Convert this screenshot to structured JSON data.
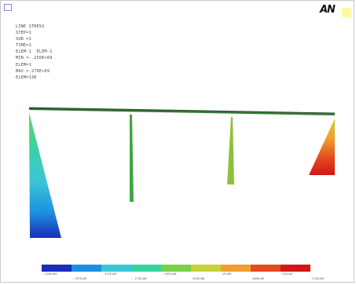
{
  "logo_text": "AN",
  "info_lines": [
    "LINE STRESS",
    "STEP=1",
    "SUB =1",
    "TIME=1",
    "ELEM-1  ELEM-1",
    "MIN =-.256E+09",
    "ELEM=1",
    "MAX =.276E+09",
    "ELEM=136"
  ],
  "legend": {
    "colors": [
      "#1a2db8",
      "#1d8fe0",
      "#3bc6d6",
      "#38d4a0",
      "#7bd04a",
      "#c8d03a",
      "#f0a030",
      "#e44a20",
      "#d01818"
    ],
    "labels_top": [
      "-.256E+09",
      "-.137E+09",
      "-.181E+08",
      ".1E+09",
      ".22E+09"
    ],
    "labels_bottom": [
      "-.197E+09",
      "-.774E+08",
      ".416E+08",
      ".160E+09",
      ".276E+09"
    ]
  }
}
